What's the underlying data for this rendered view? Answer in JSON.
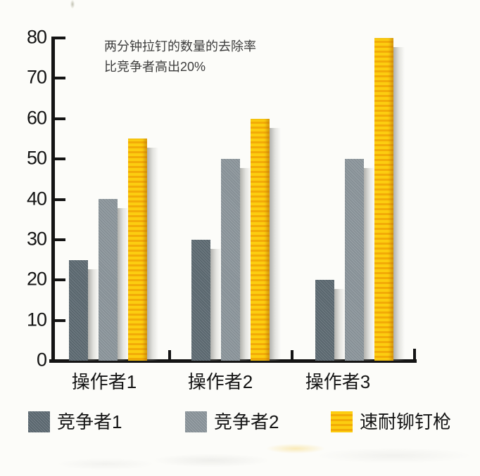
{
  "annotation": {
    "line1": "两分钟拉钉的数量的去除率",
    "line2": "比竞争者高出20%"
  },
  "chart_data": {
    "type": "bar",
    "title": "",
    "xlabel": "",
    "ylabel": "",
    "categories": [
      "操作者1",
      "操作者2",
      "操作者3"
    ],
    "series": [
      {
        "name": "竞争者1",
        "color": "#5d6a72",
        "values": [
          25,
          30,
          20
        ]
      },
      {
        "name": "竞争者2",
        "color": "#8b959b",
        "values": [
          40,
          50,
          50
        ]
      },
      {
        "name": "速耐铆钉枪",
        "color": "#fccd10",
        "stripe_color": "#f2ab07",
        "values": [
          55,
          60,
          80
        ]
      }
    ],
    "ylim": [
      0,
      80
    ],
    "ytick_step": 10,
    "grid": false,
    "legend_position": "bottom",
    "annotation": "两分钟拉钉的数量的去除率 比竞争者高出20%"
  }
}
